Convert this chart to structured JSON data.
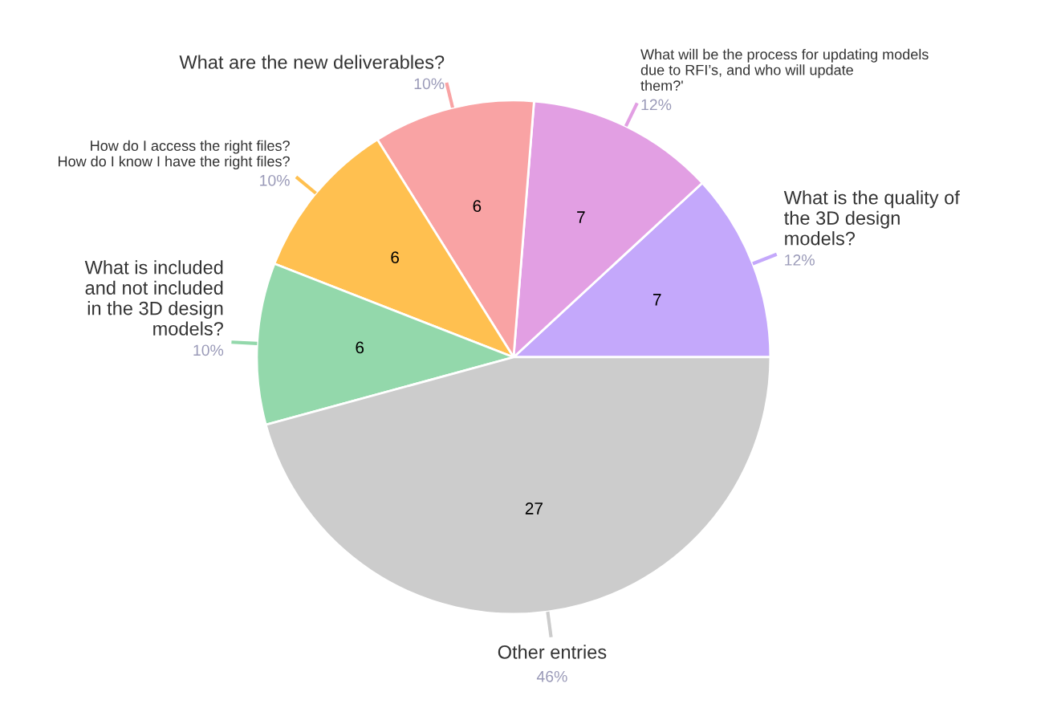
{
  "chart_data": {
    "type": "pie",
    "categories": [
      "What is the quality of\nthe 3D design\nmodels?",
      "What will be the process for updating models\ndue to RFI’s, and who will update\nthem?'",
      "What are the new deliverables?",
      "How do I access the right files?\nHow do I know I have the right files?",
      "What is included\nand not included\nin the 3D design\nmodels?",
      "Other entries"
    ],
    "values": [
      7,
      7,
      6,
      6,
      6,
      27
    ],
    "colors": [
      "#c4a8fb",
      "#e29fe3",
      "#f9a3a4",
      "#ffc050",
      "#93d8ab",
      "#cccccc"
    ],
    "data_labels": true,
    "annotations": [
      "12%",
      "12%",
      "10%",
      "10%",
      "10%",
      "46%"
    ]
  }
}
